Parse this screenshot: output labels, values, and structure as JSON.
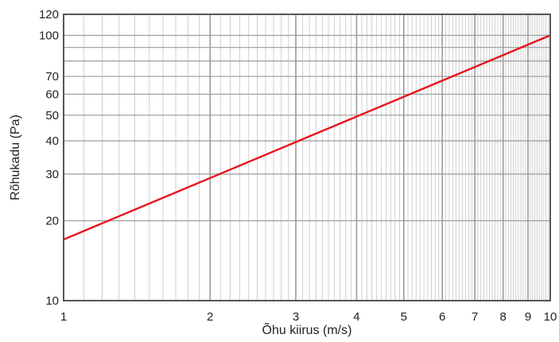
{
  "chart_data": {
    "type": "line",
    "xlabel": "Õhu kiirus (m/s)",
    "ylabel": "Rõhukadu (Pa)",
    "x_scale": "log",
    "y_scale": "log",
    "xlim": [
      1,
      10
    ],
    "ylim": [
      10,
      120
    ],
    "x_ticks": [
      1,
      2,
      3,
      4,
      5,
      6,
      7,
      8,
      9,
      10
    ],
    "x_tick_labels": [
      "1",
      "2",
      "3",
      "4",
      "5",
      "6",
      "7",
      "8",
      "9",
      "10"
    ],
    "y_ticks": [
      10,
      20,
      30,
      40,
      50,
      60,
      70,
      100,
      120
    ],
    "y_tick_labels": [
      "10",
      "20",
      "30",
      "40",
      "50",
      "60",
      "70",
      "100",
      "120"
    ],
    "grid": true,
    "legend": "none",
    "series": [
      {
        "color": "#e8141c",
        "x": [
          1,
          10
        ],
        "y": [
          17,
          100
        ]
      }
    ]
  }
}
